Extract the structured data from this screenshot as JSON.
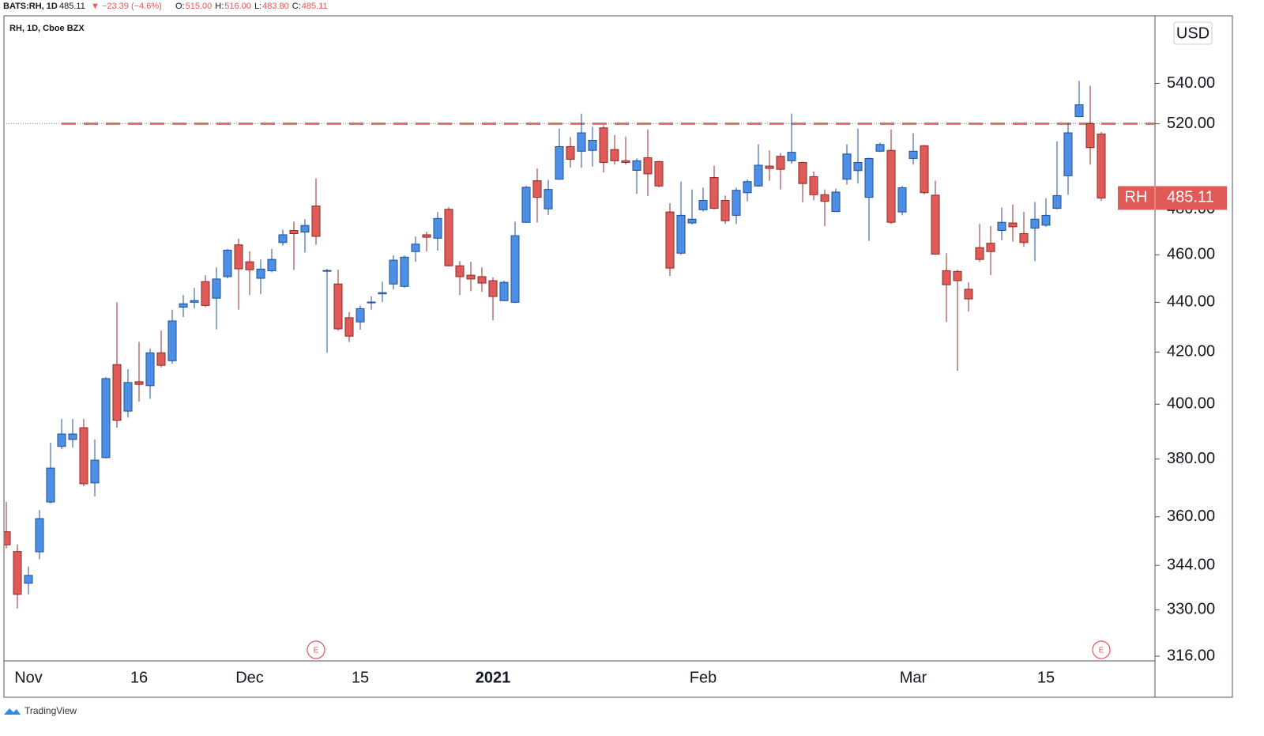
{
  "header": {
    "symbol": "BATS:RH, 1D",
    "last": "485.11",
    "change": "▼ −23.39 (−4.6%)",
    "ohlc": [
      {
        "label": "O:",
        "value": "515.00"
      },
      {
        "label": "H:",
        "value": "516.00"
      },
      {
        "label": "L:",
        "value": "483.80"
      },
      {
        "label": "C:",
        "value": "485.11"
      }
    ]
  },
  "chart_data": {
    "type": "candlestick",
    "title": "RH, 1D, Cboe BZX",
    "currency": "USD",
    "log_scale": true,
    "up_color": "#4d8fe6",
    "up_border": "#1f4f91",
    "down_color": "#e05a57",
    "down_border": "#8c2b29",
    "categories": [
      null,
      null,
      "Nov",
      null,
      null,
      null,
      null,
      null,
      null,
      null,
      null,
      null,
      "16",
      null,
      null,
      null,
      null,
      null,
      null,
      null,
      null,
      null,
      "Dec",
      null,
      null,
      null,
      null,
      null,
      null,
      null,
      null,
      null,
      "15",
      null,
      null,
      null,
      null,
      null,
      null,
      null,
      null,
      null,
      null,
      null,
      "2021",
      null,
      null,
      null,
      null,
      null,
      null,
      null,
      null,
      null,
      null,
      null,
      null,
      null,
      null,
      null,
      null,
      null,
      null,
      "Feb",
      null,
      null,
      null,
      null,
      null,
      null,
      null,
      null,
      null,
      null,
      null,
      null,
      null,
      null,
      null,
      null,
      null,
      null,
      "Mar",
      null,
      null,
      null,
      null,
      null,
      null,
      null,
      null,
      null,
      null,
      null,
      "15",
      null,
      null,
      null,
      null,
      null,
      null,
      null
    ],
    "series": [
      {
        "name": "RH",
        "open": [
          355,
          348.5,
          338.3,
          348.4,
          365,
          384.5,
          387,
          391.3,
          371.6,
          380.5,
          415.1,
          397.4,
          408.5,
          407,
          419.7,
          416.6,
          438,
          440,
          448.6,
          441.7,
          450.7,
          464.3,
          457,
          450,
          453.2,
          465.3,
          470.6,
          469.9,
          481.5,
          453,
          447.6,
          433.7,
          432,
          439.8,
          443.5,
          447.6,
          446.6,
          461.4,
          468.7,
          467.2,
          480,
          455.3,
          451.3,
          450.7,
          449,
          440.7,
          440,
          474.2,
          493,
          480.2,
          493.7,
          509,
          506.8,
          507.2,
          518,
          507.6,
          502.3,
          497.8,
          503.7,
          501.9,
          478.8,
          460.7,
          473.9,
          479.8,
          494.5,
          484,
          477.3,
          487.5,
          490.6,
          499.8,
          504.4,
          502.3,
          501.5,
          494.9,
          486.6,
          479,
          493.7,
          497.7,
          485.4,
          506.8,
          507.2,
          478.8,
          503.4,
          509.4,
          486.4,
          453.2,
          452.9,
          445.4,
          463.1,
          465,
          470.6,
          473.9,
          469.2,
          471.6,
          472.9,
          480.4,
          495.3,
          523.5,
          520,
          515
        ],
        "high": [
          365,
          350.8,
          343.6,
          362.3,
          385.8,
          394.5,
          394.5,
          394.5,
          387,
          410.3,
          440,
          413.3,
          424,
          421.3,
          428.5,
          437,
          443,
          446,
          451.3,
          454.6,
          462.5,
          467,
          461.5,
          458,
          462.5,
          471,
          474.5,
          475.6,
          494,
          454,
          453.6,
          436,
          438.7,
          442.5,
          448.6,
          459.7,
          459.7,
          467.9,
          470,
          478.8,
          481,
          457.3,
          457,
          454.6,
          450.4,
          449,
          474.5,
          490.6,
          498.7,
          493.4,
          517.7,
          513.5,
          525,
          518.5,
          519.2,
          514.6,
          513.8,
          503.4,
          517.3,
          502.3,
          482.7,
          492.6,
          489,
          489.8,
          499.9,
          486.2,
          489.8,
          493.7,
          510,
          507.2,
          505.9,
          525,
          501.9,
          497.3,
          489,
          489.4,
          510,
          517.7,
          503.7,
          511,
          517.3,
          490.6,
          515.4,
          509.8,
          493,
          460.7,
          453.6,
          448.3,
          473.5,
          472.5,
          480.8,
          482.2,
          478.8,
          483.3,
          485,
          511.5,
          520.4,
          541.3,
          538.8,
          516
        ],
        "low": [
          349.5,
          330.4,
          334.8,
          346,
          364.5,
          383.5,
          384,
          370.5,
          367,
          380.2,
          391.3,
          395,
          401,
          402,
          414,
          415.4,
          434,
          437.5,
          438,
          429,
          450,
          437,
          443,
          443.3,
          452.5,
          464,
          453.5,
          461,
          464.3,
          419.7,
          428.5,
          424,
          428.9,
          437,
          440,
          445.4,
          446,
          457,
          461.4,
          461.8,
          455,
          443,
          444.6,
          444.3,
          432.7,
          440.4,
          439.7,
          473.9,
          474.2,
          477.5,
          493.4,
          499,
          499,
          499.6,
          496.9,
          500.5,
          500.5,
          487,
          486,
          490,
          451,
          460,
          473.2,
          479,
          480,
          473.5,
          473.5,
          483.6,
          490.2,
          493,
          489,
          500.9,
          483.2,
          484,
          472.5,
          478.8,
          491.3,
          491.7,
          466,
          506.4,
          473.5,
          477.3,
          500.5,
          486.8,
          460,
          432,
          412.7,
          436.2,
          457,
          451.3,
          466.3,
          465.7,
          463.4,
          457.3,
          472.2,
          480,
          486.6,
          523.1,
          500.5,
          483.8
        ],
        "close": [
          350.7,
          334.8,
          340.8,
          359.4,
          376.8,
          389,
          389,
          371.3,
          379.6,
          409.7,
          394,
          408.2,
          407.5,
          419.7,
          414.8,
          432.4,
          439.4,
          440.7,
          438.7,
          449.7,
          462,
          454,
          453.6,
          453.9,
          458,
          468.7,
          469.2,
          472.8,
          468,
          453.3,
          429.2,
          426.3,
          437.4,
          440.1,
          444,
          457.7,
          459,
          464.6,
          467.6,
          475.9,
          455.3,
          450.7,
          449.7,
          448,
          442.4,
          448.3,
          468.3,
          490,
          485.4,
          489,
          509,
          503,
          515.6,
          512,
          501.5,
          502.3,
          501.5,
          502.3,
          496.2,
          490.6,
          454.3,
          477.3,
          475.6,
          484,
          480.4,
          474.9,
          488.6,
          492.6,
          500.2,
          498.7,
          498.3,
          506.3,
          491.7,
          486.6,
          483.6,
          487.8,
          505.5,
          501.5,
          503.4,
          510,
          474.2,
          489.8,
          506.8,
          487.5,
          460.3,
          447.3,
          449,
          441.4,
          458,
          461.4,
          474.2,
          472.2,
          465.3,
          475.6,
          477.3,
          486.2,
          515.6,
          529.3,
          508.5,
          485.11
        ]
      }
    ],
    "ylim": [
      314.6,
      574.4
    ],
    "yticks": [
      {
        "value": 316,
        "label": "316.00"
      },
      {
        "value": 330,
        "label": "330.00"
      },
      {
        "value": 344,
        "label": "344.00"
      },
      {
        "value": 360,
        "label": "360.00"
      },
      {
        "value": 380,
        "label": "380.00"
      },
      {
        "value": 400,
        "label": "400.00"
      },
      {
        "value": 420,
        "label": "420.00"
      },
      {
        "value": 440,
        "label": "440.00"
      },
      {
        "value": 460,
        "label": "460.00"
      },
      {
        "value": 480,
        "label": "480.00"
      },
      {
        "value": 520,
        "label": "520.00"
      },
      {
        "value": 540,
        "label": "540.00"
      }
    ],
    "hline": {
      "value": 520,
      "color": "#e07070"
    },
    "price_tag": {
      "symbol": "RH",
      "value": 485.11,
      "color": "#e05a57"
    },
    "earnings": [
      {
        "index": 28,
        "label": "E"
      },
      {
        "index": 99,
        "label": "E"
      }
    ]
  },
  "footer": {
    "brand": "TradingView"
  }
}
